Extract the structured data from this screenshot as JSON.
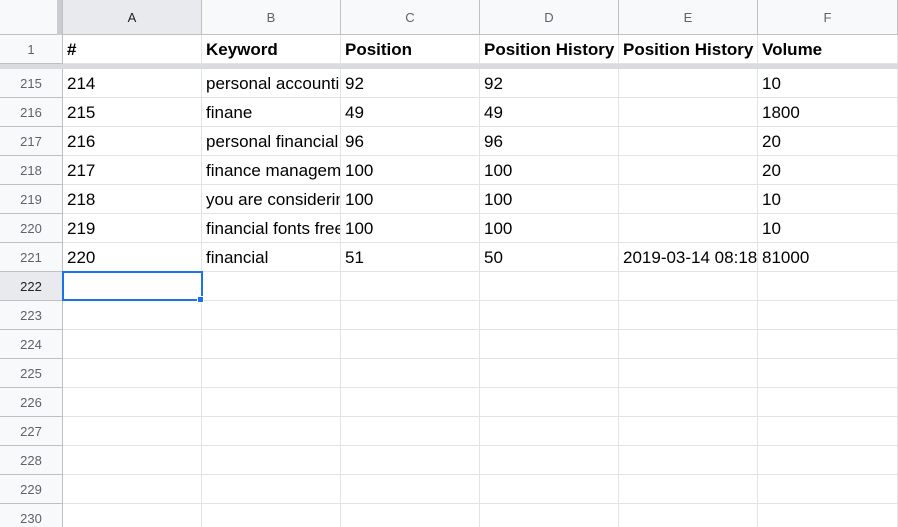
{
  "columns": [
    "A",
    "B",
    "C",
    "D",
    "E",
    "F"
  ],
  "header_row": {
    "row_number": "1",
    "cells": [
      "#",
      "Keyword",
      "Position",
      "Position History",
      "Position History",
      "Volume"
    ]
  },
  "rows": [
    {
      "row_number": "215",
      "cells": [
        "214",
        "personal accounting",
        "92",
        "92",
        "",
        "10"
      ]
    },
    {
      "row_number": "216",
      "cells": [
        "215",
        "finane",
        "49",
        "49",
        "",
        "1800"
      ]
    },
    {
      "row_number": "217",
      "cells": [
        "216",
        "personal financial",
        "96",
        "96",
        "",
        "20"
      ]
    },
    {
      "row_number": "218",
      "cells": [
        "217",
        "finance management",
        "100",
        "100",
        "",
        "20"
      ]
    },
    {
      "row_number": "219",
      "cells": [
        "218",
        "you are considering",
        "100",
        "100",
        "",
        "10"
      ]
    },
    {
      "row_number": "220",
      "cells": [
        "219",
        "financial fonts free",
        "100",
        "100",
        "",
        "10"
      ]
    },
    {
      "row_number": "221",
      "cells": [
        "220",
        "financial",
        "51",
        "50",
        "2019-03-14 08:18",
        "81000"
      ]
    }
  ],
  "empty_rows": [
    "222",
    "223",
    "224",
    "225",
    "226",
    "227",
    "228",
    "229",
    "230"
  ],
  "selection": {
    "cell": "A222"
  },
  "colors": {
    "selection": "#1a73e8",
    "header_bg": "#f8f9fa",
    "active_header_bg": "#e8eaed"
  }
}
